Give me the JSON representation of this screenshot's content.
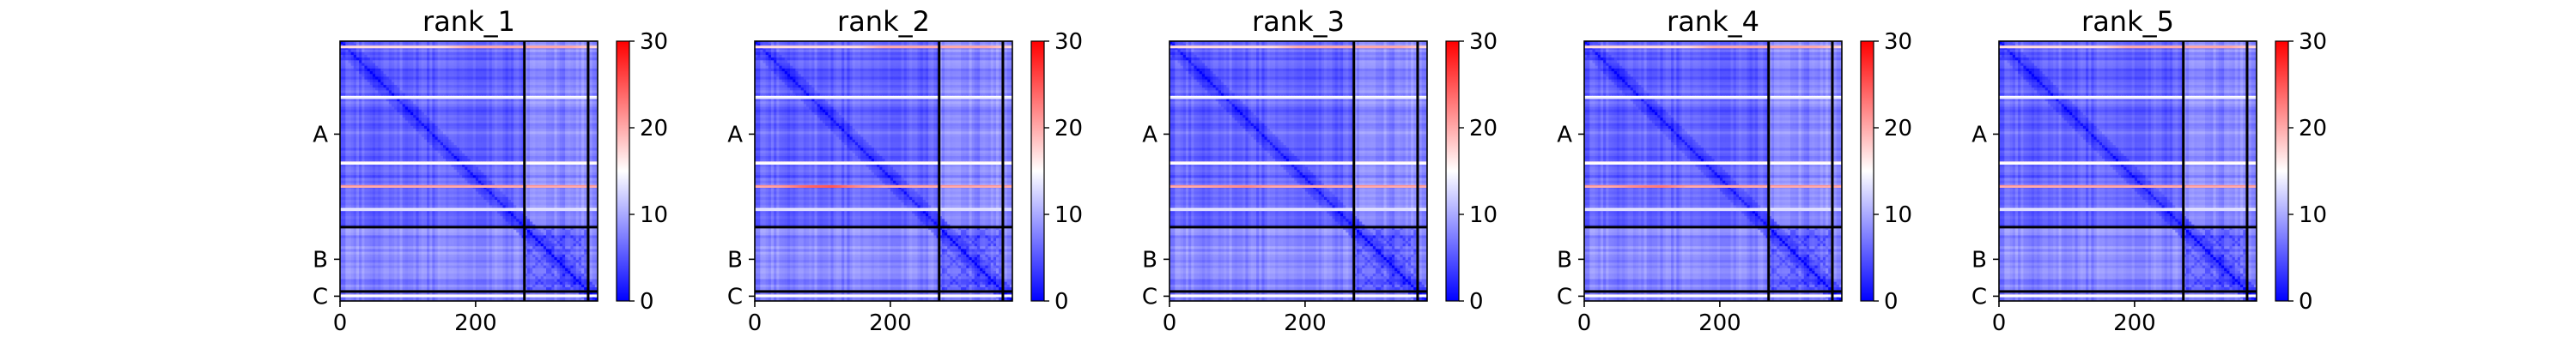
{
  "chart_data": {
    "type": "heatmap",
    "colormap": {
      "name": "bwr",
      "low": "#0000ff",
      "mid": "#ffffff",
      "high": "#ff0000"
    },
    "color_range": [
      0,
      30
    ],
    "colorbar_ticks": [
      0,
      10,
      20,
      30
    ],
    "x_ticks": [
      0,
      200
    ],
    "x_range": [
      0,
      380
    ],
    "y_range": [
      0,
      380
    ],
    "chains": [
      {
        "label": "A",
        "start": 0,
        "end": 272
      },
      {
        "label": "B",
        "start": 272,
        "end": 366
      },
      {
        "label": "C",
        "start": 366,
        "end": 380
      }
    ],
    "grid": false,
    "panels": [
      {
        "title": "rank_1",
        "bright_band_peak": 20
      },
      {
        "title": "rank_2",
        "bright_band_peak": 26
      },
      {
        "title": "rank_3",
        "bright_band_peak": 23
      },
      {
        "title": "rank_4",
        "bright_band_peak": 24
      },
      {
        "title": "rank_5",
        "bright_band_peak": 17
      }
    ]
  }
}
